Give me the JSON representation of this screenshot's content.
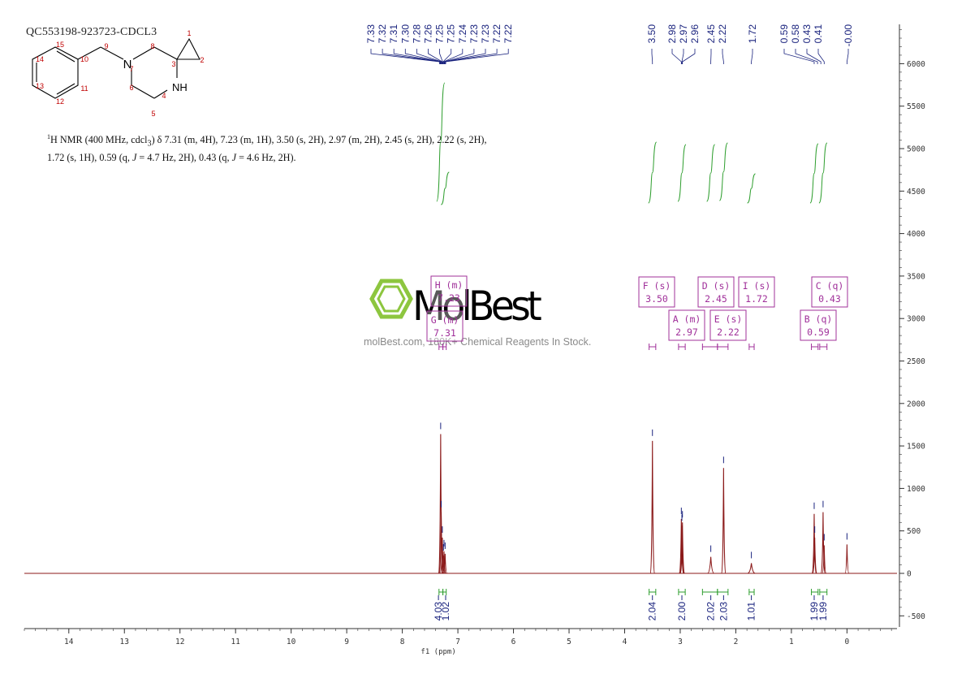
{
  "sample_id": "QC553198-923723-CDCL3",
  "description": {
    "prefix_sup": "1",
    "text_html": "H NMR (400 MHz, cdcl<sub>3</sub>) δ 7.31 (m, 4H), 7.23 (m, 1H), 3.50 (s, 2H), 2.97 (m, 2H), 2.45 (s, 2H), 2.22 (s, 2H), 1.72 (s, 1H), 0.59 (q, <i>J</i> = 4.7 Hz, 2H), 0.43 (q, <i>J</i> = 4.6 Hz, 2H)."
  },
  "watermark": {
    "brand": "MolBest",
    "tagline": "molBest.com, 180K+ Chemical Reagents In Stock."
  },
  "structure": {
    "atom_numbers": [
      "1",
      "2",
      "3",
      "5",
      "6",
      "7",
      "8",
      "9",
      "10",
      "11",
      "12",
      "13",
      "14",
      "15",
      "4"
    ],
    "heteroatoms": [
      "N",
      "NH"
    ]
  },
  "peak_labels": [
    "7.33",
    "7.32",
    "7.31",
    "7.30",
    "7.28",
    "7.26",
    "7.25",
    "7.25",
    "7.24",
    "7.23",
    "7.23",
    "7.22",
    "7.22",
    "3.50",
    "2.98",
    "2.97",
    "2.96",
    "2.45",
    "2.22",
    "1.72",
    "0.59",
    "0.58",
    "0.43",
    "0.41",
    "-0.00"
  ],
  "multiplets": [
    {
      "id": "H",
      "type": "(m)",
      "value": "7.23"
    },
    {
      "id": "G",
      "type": "(m)",
      "value": "7.31"
    },
    {
      "id": "F",
      "type": "(s)",
      "value": "3.50"
    },
    {
      "id": "A",
      "type": "(m)",
      "value": "2.97"
    },
    {
      "id": "D",
      "type": "(s)",
      "value": "2.45"
    },
    {
      "id": "E",
      "type": "(s)",
      "value": "2.22"
    },
    {
      "id": "I",
      "type": "(s)",
      "value": "1.72"
    },
    {
      "id": "C",
      "type": "(q)",
      "value": "0.43"
    },
    {
      "id": "B",
      "type": "(q)",
      "value": "0.59"
    }
  ],
  "integrals": [
    {
      "ppm": 7.31,
      "value": "4.03"
    },
    {
      "ppm": 7.23,
      "value": "1.02"
    },
    {
      "ppm": 3.5,
      "value": "2.04"
    },
    {
      "ppm": 2.97,
      "value": "2.00"
    },
    {
      "ppm": 2.45,
      "value": "2.02"
    },
    {
      "ppm": 2.22,
      "value": "2.03"
    },
    {
      "ppm": 1.72,
      "value": "1.01"
    },
    {
      "ppm": 0.59,
      "value": "1.99"
    },
    {
      "ppm": 0.43,
      "value": "1.99"
    }
  ],
  "chart_data": {
    "type": "line",
    "xlabel": "f1 (ppm)",
    "xlim": [
      14.8,
      -0.9
    ],
    "x_ticks": [
      "14",
      "13",
      "12",
      "11",
      "10",
      "9",
      "8",
      "7",
      "6",
      "5",
      "4",
      "3",
      "2",
      "1",
      "0"
    ],
    "ylim": [
      -600,
      6500
    ],
    "y_ticks": [
      "6000",
      "5500",
      "5000",
      "4500",
      "4000",
      "3500",
      "3000",
      "2500",
      "2000",
      "1500",
      "1000",
      "500",
      "0",
      "-500"
    ],
    "colors": {
      "spectrum": "#8b1a1a",
      "peak_labels": "#1a237e",
      "integrals": "#2e9e2e",
      "multiplet_boxes": "#a0309a"
    },
    "peaks": [
      {
        "ppm": 7.31,
        "height": 1640,
        "width": 0.008
      },
      {
        "ppm": 7.3,
        "height": 720,
        "width": 0.008
      },
      {
        "ppm": 7.28,
        "height": 420,
        "width": 0.008
      },
      {
        "ppm": 7.26,
        "height": 210,
        "width": 0.008
      },
      {
        "ppm": 7.25,
        "height": 260,
        "width": 0.008
      },
      {
        "ppm": 7.23,
        "height": 230,
        "width": 0.008
      },
      {
        "ppm": 3.5,
        "height": 1560,
        "width": 0.006
      },
      {
        "ppm": 2.98,
        "height": 640,
        "width": 0.005
      },
      {
        "ppm": 2.97,
        "height": 560,
        "width": 0.005
      },
      {
        "ppm": 2.96,
        "height": 600,
        "width": 0.005
      },
      {
        "ppm": 2.45,
        "height": 195,
        "width": 0.03
      },
      {
        "ppm": 2.22,
        "height": 1240,
        "width": 0.006
      },
      {
        "ppm": 1.72,
        "height": 120,
        "width": 0.035
      },
      {
        "ppm": 0.59,
        "height": 700,
        "width": 0.006
      },
      {
        "ppm": 0.58,
        "height": 420,
        "width": 0.006
      },
      {
        "ppm": 0.43,
        "height": 720,
        "width": 0.006
      },
      {
        "ppm": 0.41,
        "height": 330,
        "width": 0.006
      },
      {
        "ppm": 0.0,
        "height": 340,
        "width": 0.004
      }
    ]
  }
}
